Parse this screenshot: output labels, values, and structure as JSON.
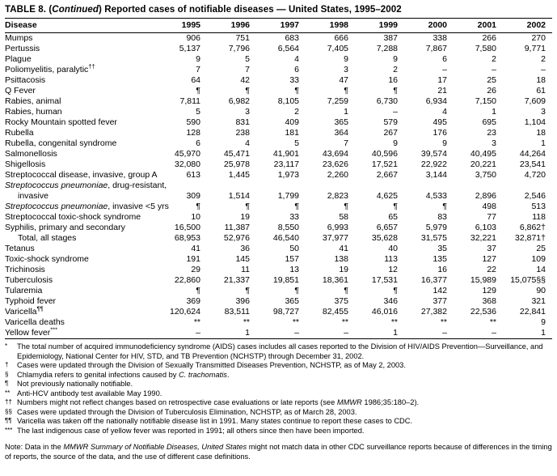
{
  "title_segments": [
    {
      "text": "TABLE 8. (",
      "italic": false
    },
    {
      "text": "Continued",
      "italic": true
    },
    {
      "text": ") Reported cases of notifiable diseases — United States, 1995–2002",
      "italic": false
    }
  ],
  "table": {
    "columns": [
      "Disease",
      "1995",
      "1996",
      "1997",
      "1998",
      "1999",
      "2000",
      "2001",
      "2002"
    ],
    "rows": [
      {
        "label": "Mumps",
        "values": [
          "906",
          "751",
          "683",
          "666",
          "387",
          "338",
          "266",
          "270"
        ]
      },
      {
        "label": "Pertussis",
        "values": [
          "5,137",
          "7,796",
          "6,564",
          "7,405",
          "7,288",
          "7,867",
          "7,580",
          "9,771"
        ]
      },
      {
        "label": "Plague",
        "values": [
          "9",
          "5",
          "4",
          "9",
          "9",
          "6",
          "2",
          "2"
        ]
      },
      {
        "label": "Poliomyelitis, paralytic",
        "sup": "††",
        "values": [
          "7",
          "7",
          "6",
          "3",
          "2",
          "–",
          "–",
          "–"
        ]
      },
      {
        "label": "Psittacosis",
        "values": [
          "64",
          "42",
          "33",
          "47",
          "16",
          "17",
          "25",
          "18"
        ]
      },
      {
        "label": "Q Fever",
        "values": [
          "¶",
          "¶",
          "¶",
          "¶",
          "¶",
          "21",
          "26",
          "61"
        ]
      },
      {
        "label": "Rabies, animal",
        "values": [
          "7,811",
          "6,982",
          "8,105",
          "7,259",
          "6,730",
          "6,934",
          "7,150",
          "7,609"
        ]
      },
      {
        "label": "Rabies, human",
        "values": [
          "5",
          "3",
          "2",
          "1",
          "–",
          "4",
          "1",
          "3"
        ]
      },
      {
        "label": "Rocky Mountain spotted fever",
        "values": [
          "590",
          "831",
          "409",
          "365",
          "579",
          "495",
          "695",
          "1,104"
        ]
      },
      {
        "label": "Rubella",
        "values": [
          "128",
          "238",
          "181",
          "364",
          "267",
          "176",
          "23",
          "18"
        ]
      },
      {
        "label": "Rubella, congenital syndrome",
        "values": [
          "6",
          "4",
          "5",
          "7",
          "9",
          "9",
          "3",
          "1"
        ]
      },
      {
        "label": "Salmonellosis",
        "values": [
          "45,970",
          "45,471",
          "41,901",
          "43,694",
          "40,596",
          "39,574",
          "40,495",
          "44,264"
        ]
      },
      {
        "label": "Shigellosis",
        "values": [
          "32,080",
          "25,978",
          "23,117",
          "23,626",
          "17,521",
          "22,922",
          "20,221",
          "23,541"
        ]
      },
      {
        "label": "Streptococcal disease, invasive, group A",
        "values": [
          "613",
          "1,445",
          "1,973",
          "2,260",
          "2,667",
          "3,144",
          "3,750",
          "4,720"
        ]
      },
      {
        "italic": "Streptococcus pneumoniae",
        "label": ", drug-resistant,",
        "values": [
          "",
          "",
          "",
          "",
          "",
          "",
          "",
          ""
        ]
      },
      {
        "label": "invasive",
        "indent": true,
        "values": [
          "309",
          "1,514",
          "1,799",
          "2,823",
          "4,625",
          "4,533",
          "2,896",
          "2,546"
        ]
      },
      {
        "italic": "Streptococcus pneumoniae",
        "label": ", invasive <5 yrs",
        "values": [
          "¶",
          "¶",
          "¶",
          "¶",
          "¶",
          "¶",
          "498",
          "513"
        ]
      },
      {
        "label": "Streptococcal toxic-shock syndrome",
        "values": [
          "10",
          "19",
          "33",
          "58",
          "65",
          "83",
          "77",
          "118"
        ]
      },
      {
        "label": "Syphilis, primary and secondary",
        "values": [
          "16,500",
          "11,387",
          "8,550",
          "6,993",
          "6,657",
          "5,979",
          "6,103",
          "6,862†"
        ]
      },
      {
        "label": "Total, all stages",
        "indent": true,
        "values": [
          "68,953",
          "52,976",
          "46,540",
          "37,977",
          "35,628",
          "31,575",
          "32,221",
          "32,871†"
        ]
      },
      {
        "label": "Tetanus",
        "values": [
          "41",
          "36",
          "50",
          "41",
          "40",
          "35",
          "37",
          "25"
        ]
      },
      {
        "label": "Toxic-shock syndrome",
        "values": [
          "191",
          "145",
          "157",
          "138",
          "113",
          "135",
          "127",
          "109"
        ]
      },
      {
        "label": "Trichinosis",
        "values": [
          "29",
          "11",
          "13",
          "19",
          "12",
          "16",
          "22",
          "14"
        ]
      },
      {
        "label": "Tuberculosis",
        "values": [
          "22,860",
          "21,337",
          "19,851",
          "18,361",
          "17,531",
          "16,377",
          "15,989",
          "15,075§§"
        ]
      },
      {
        "label": "Tularemia",
        "values": [
          "¶",
          "¶",
          "¶",
          "¶",
          "¶",
          "142",
          "129",
          "90"
        ]
      },
      {
        "label": "Typhoid fever",
        "values": [
          "369",
          "396",
          "365",
          "375",
          "346",
          "377",
          "368",
          "321"
        ]
      },
      {
        "label": "Varicella",
        "sup": "¶¶",
        "values": [
          "120,624",
          "83,511",
          "98,727",
          "82,455",
          "46,016",
          "27,382",
          "22,536",
          "22,841"
        ]
      },
      {
        "label": "Varicella deaths",
        "values": [
          "**",
          "**",
          "**",
          "**",
          "**",
          "**",
          "**",
          "9"
        ]
      },
      {
        "label": "Yellow fever",
        "sup": "***",
        "values": [
          "–",
          "1",
          "–",
          "–",
          "1",
          "–",
          "–",
          "1"
        ]
      }
    ]
  },
  "footnotes": [
    {
      "marker": "*",
      "segments": [
        {
          "text": "The total number of acquired immunodeficiency syndrome (AIDS) cases includes all cases reported to the Division of HIV/AIDS Prevention—Surveillance, and Epidemiology, National Center for HIV, STD, and TB Prevention (NCHSTP) through December 31, 2002.",
          "italic": false
        }
      ]
    },
    {
      "marker": "†",
      "segments": [
        {
          "text": "Cases were updated through the Division of Sexually Transmitted Diseases Prevention, NCHSTP, as of  May 2, 2003.",
          "italic": false
        }
      ]
    },
    {
      "marker": "§",
      "segments": [
        {
          "text": "Chlamydia refers to genital infections caused by ",
          "italic": false
        },
        {
          "text": "C. trachomatis",
          "italic": true
        },
        {
          "text": ".",
          "italic": false
        }
      ]
    },
    {
      "marker": "¶",
      "segments": [
        {
          "text": "Not previously nationally notifiable.",
          "italic": false
        }
      ]
    },
    {
      "marker": "**",
      "segments": [
        {
          "text": "Anti-HCV antibody test available May 1990.",
          "italic": false
        }
      ]
    },
    {
      "marker": "††",
      "segments": [
        {
          "text": "Numbers might not reflect changes based on retrospective case evaluations or late reports (see ",
          "italic": false
        },
        {
          "text": "MMWR",
          "italic": true
        },
        {
          "text": " 1986;35:180–2).",
          "italic": false
        }
      ]
    },
    {
      "marker": "§§",
      "segments": [
        {
          "text": "Cases were updated through the Division of Tuberculosis Elimination, NCHSTP, as of March 28, 2003.",
          "italic": false
        }
      ]
    },
    {
      "marker": "¶¶",
      "segments": [
        {
          "text": "Varicella was taken off the nationally notifiable disease list in 1991.  Many states continue to report these cases to CDC.",
          "italic": false
        }
      ]
    },
    {
      "marker": "***",
      "segments": [
        {
          "text": "The last indigenous case of yellow fever was reported in 1991; all others since then have been imported.",
          "italic": false
        }
      ]
    }
  ],
  "note_segments": [
    {
      "text": "Note: Data in the ",
      "italic": false
    },
    {
      "text": "MMWR Summary of Notifiable Diseases, United States",
      "italic": true
    },
    {
      "text": " might not match data in other CDC surveillance reports because of differences in the timing of reports, the source of the data, and the use of different case definitions.",
      "italic": false
    }
  ]
}
